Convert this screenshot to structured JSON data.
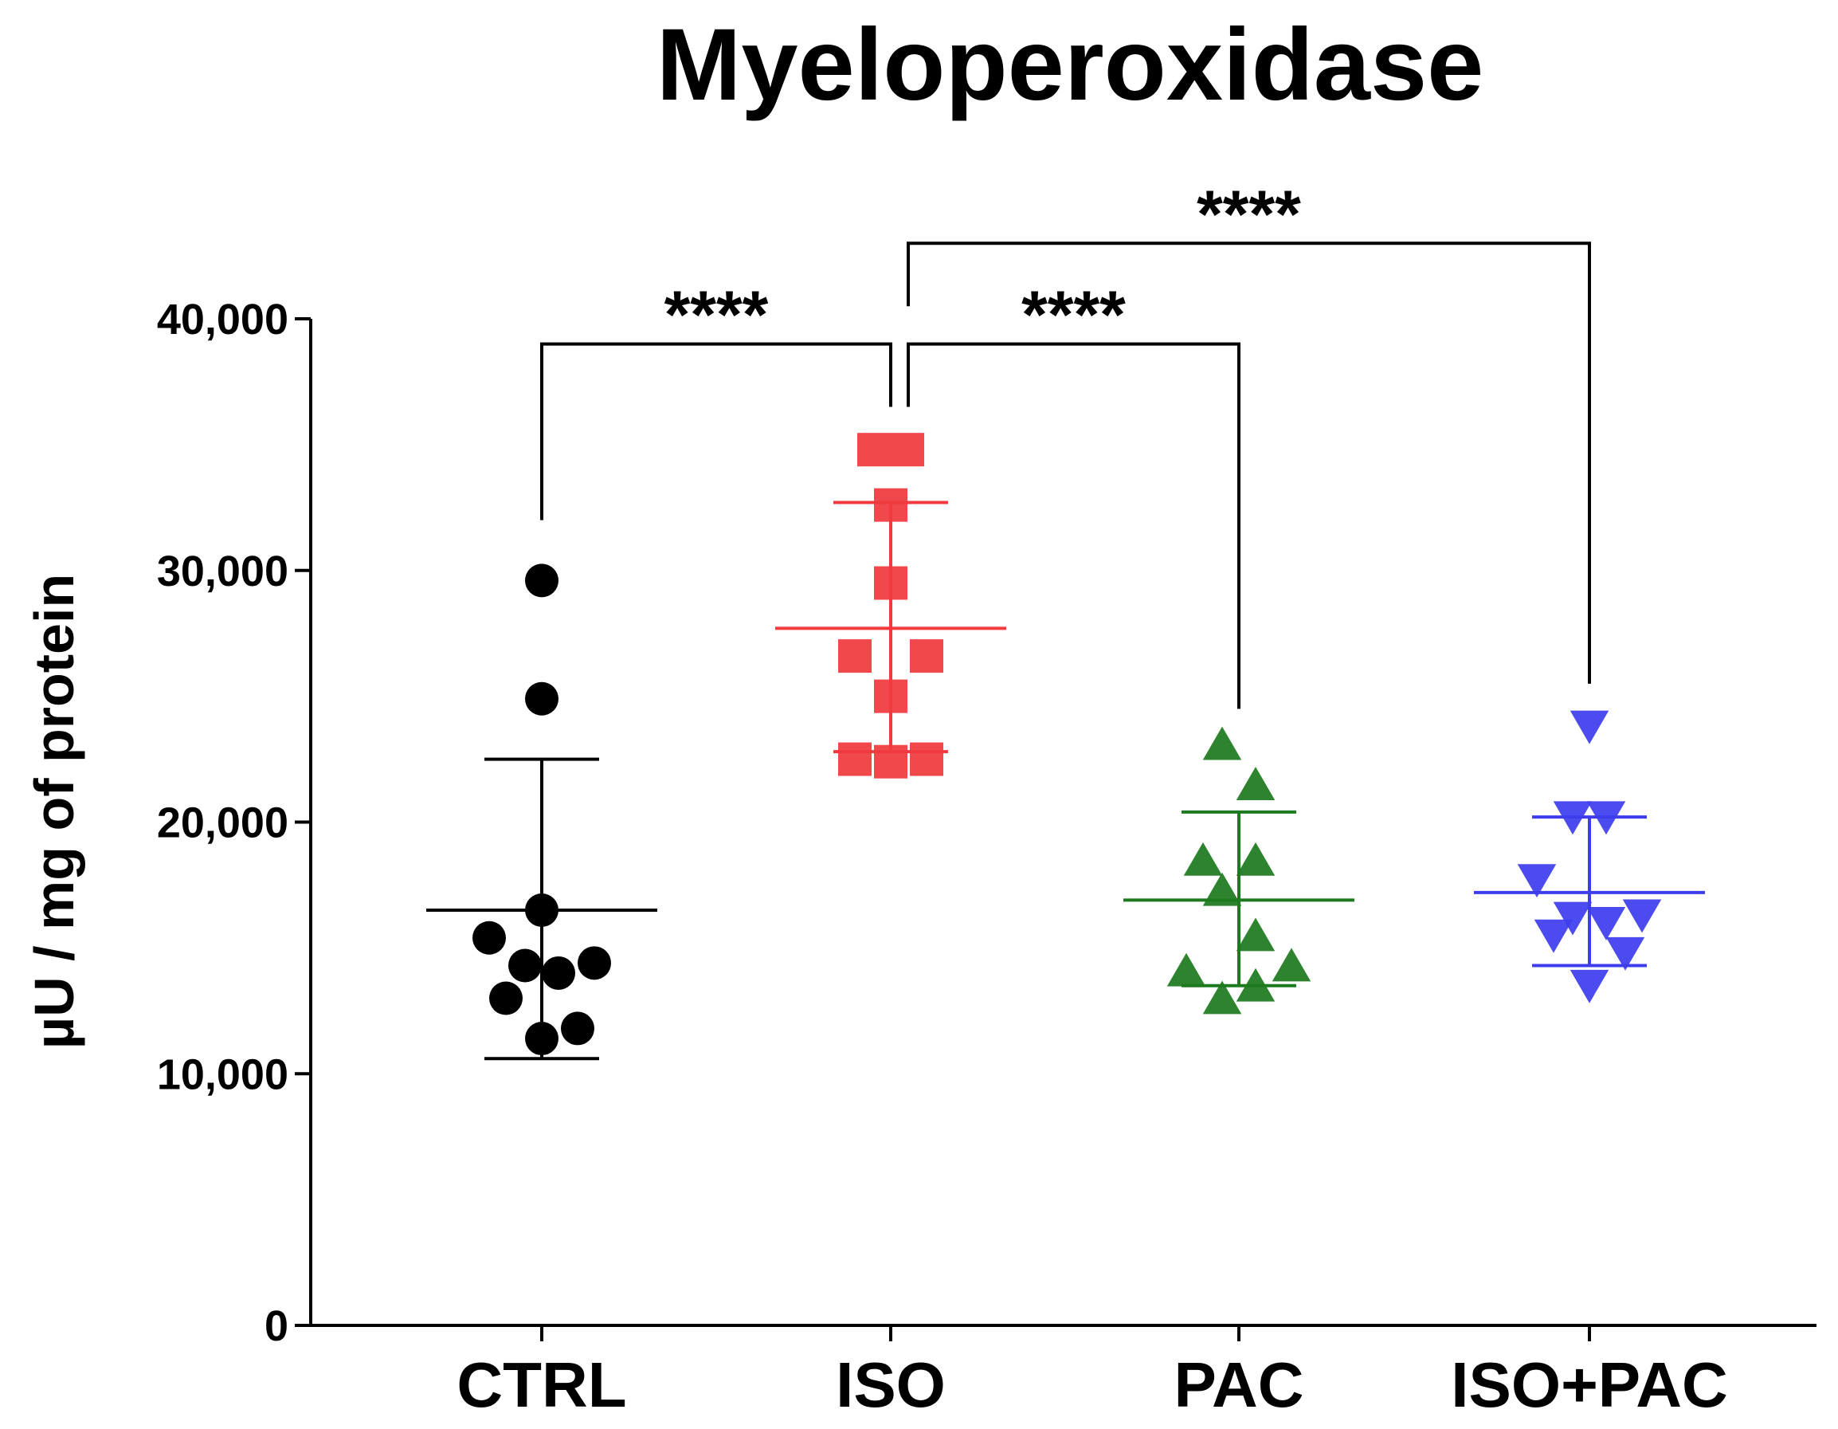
{
  "chart_data": {
    "type": "scatter",
    "title": "Myeloperoxidase",
    "xlabel": "",
    "ylabel": "µU / mg of protein",
    "ylim": [
      0,
      40000
    ],
    "yticks": [
      0,
      10000,
      20000,
      30000,
      40000
    ],
    "ytick_labels": [
      "0",
      "10,000",
      "20,000",
      "30,000",
      "40,000"
    ],
    "categories": [
      "CTRL",
      "ISO",
      "PAC",
      "ISO+PAC"
    ],
    "series": [
      {
        "name": "CTRL",
        "marker": "circle",
        "color": "#000000",
        "mean": 16500,
        "sd_upper": 22500,
        "sd_lower": 10600,
        "points": [
          {
            "x": 0,
            "y": 29600
          },
          {
            "x": 0,
            "y": 24900
          },
          {
            "x": 0,
            "y": 16500
          },
          {
            "x": -0.22,
            "y": 15400
          },
          {
            "x": -0.07,
            "y": 14300
          },
          {
            "x": 0.07,
            "y": 14000
          },
          {
            "x": 0.22,
            "y": 14400
          },
          {
            "x": -0.15,
            "y": 13000
          },
          {
            "x": 0.15,
            "y": 11800
          },
          {
            "x": 0,
            "y": 11400
          }
        ]
      },
      {
        "name": "ISO",
        "marker": "square",
        "color": "#f03a3e",
        "mean": 27700,
        "sd_upper": 32700,
        "sd_lower": 22800,
        "points": [
          {
            "x": -0.07,
            "y": 34800
          },
          {
            "x": 0.07,
            "y": 34800
          },
          {
            "x": 0,
            "y": 32600
          },
          {
            "x": 0,
            "y": 29500
          },
          {
            "x": -0.15,
            "y": 26600
          },
          {
            "x": 0.15,
            "y": 26600
          },
          {
            "x": 0,
            "y": 25000
          },
          {
            "x": -0.15,
            "y": 22500
          },
          {
            "x": 0,
            "y": 22400
          },
          {
            "x": 0.15,
            "y": 22500
          }
        ]
      },
      {
        "name": "PAC",
        "marker": "triangle-up",
        "color": "#1e7a1e",
        "mean": 16900,
        "sd_upper": 20400,
        "sd_lower": 13500,
        "points": [
          {
            "x": -0.07,
            "y": 23100
          },
          {
            "x": 0.07,
            "y": 21500
          },
          {
            "x": -0.15,
            "y": 18500
          },
          {
            "x": 0.07,
            "y": 18500
          },
          {
            "x": -0.07,
            "y": 17300
          },
          {
            "x": 0.07,
            "y": 15500
          },
          {
            "x": -0.22,
            "y": 14100
          },
          {
            "x": 0.22,
            "y": 14300
          },
          {
            "x": 0.07,
            "y": 13500
          },
          {
            "x": -0.07,
            "y": 13000
          }
        ]
      },
      {
        "name": "ISO+PAC",
        "marker": "triangle-down",
        "color": "#3d3dee",
        "mean": 17200,
        "sd_upper": 20200,
        "sd_lower": 14300,
        "points": [
          {
            "x": 0,
            "y": 23800
          },
          {
            "x": -0.07,
            "y": 20200
          },
          {
            "x": 0.07,
            "y": 20200
          },
          {
            "x": -0.22,
            "y": 17700
          },
          {
            "x": -0.07,
            "y": 16200
          },
          {
            "x": 0.07,
            "y": 16000
          },
          {
            "x": 0.22,
            "y": 16300
          },
          {
            "x": -0.15,
            "y": 15500
          },
          {
            "x": 0.15,
            "y": 14800
          },
          {
            "x": 0,
            "y": 13500
          }
        ]
      }
    ],
    "significance": [
      {
        "from": "CTRL",
        "to": "ISO",
        "label": "****",
        "left_end": 32000,
        "right_end": 36500,
        "bar_y": 39000
      },
      {
        "from": "ISO",
        "to": "PAC",
        "label": "****",
        "left_end": 36500,
        "right_end": 24500,
        "bar_y": 39000
      },
      {
        "from": "ISO",
        "to": "ISO+PAC",
        "label": "****",
        "left_end": 40500,
        "right_end": 25500,
        "bar_y": 43000
      }
    ]
  }
}
